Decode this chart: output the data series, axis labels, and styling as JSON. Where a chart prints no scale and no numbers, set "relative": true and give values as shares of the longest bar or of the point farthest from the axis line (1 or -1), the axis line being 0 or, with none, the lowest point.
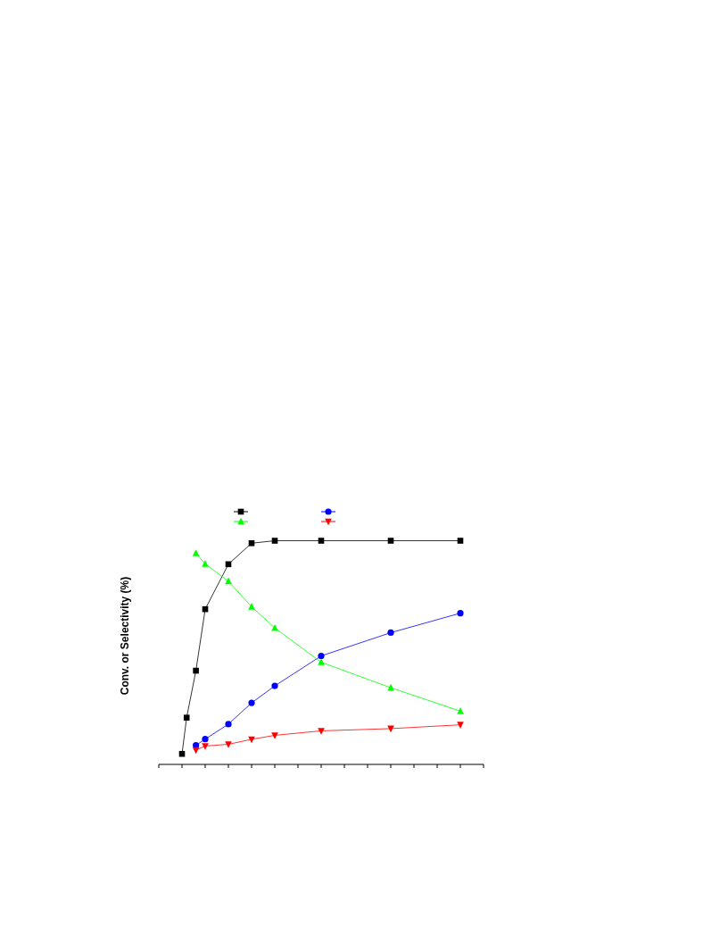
{
  "chart_data": {
    "type": "line",
    "ylabel": "Conv. or Selectivity (%)",
    "relative": true,
    "categories": [
      null,
      null,
      null,
      null,
      null,
      null,
      null,
      null,
      null,
      null,
      null,
      null,
      null,
      null,
      null,
      null,
      null,
      null,
      null,
      null,
      null,
      null,
      null,
      null,
      null,
      null,
      null,
      null,
      null,
      null,
      null,
      null,
      null,
      null,
      null,
      null,
      null,
      null,
      null,
      null,
      null,
      null,
      null,
      null,
      null,
      null,
      null,
      null,
      null,
      null,
      null,
      null,
      null,
      null,
      null,
      null,
      null,
      null,
      null,
      null,
      null,
      null,
      null,
      null,
      null,
      null,
      null,
      null,
      null,
      null,
      null
    ],
    "series": [
      {
        "color": "#000000",
        "marker": "square",
        "values": [
          null,
          null,
          null,
          null,
          null,
          0.047,
          0.209,
          null,
          0.419,
          null,
          0.694,
          null,
          null,
          null,
          null,
          0.895,
          null,
          null,
          null,
          null,
          0.989,
          null,
          null,
          null,
          null,
          1,
          null,
          null,
          null,
          null,
          null,
          null,
          null,
          null,
          null,
          1,
          null,
          null,
          null,
          null,
          null,
          null,
          null,
          null,
          null,
          null,
          null,
          null,
          null,
          null,
          1,
          null,
          null,
          null,
          null,
          null,
          null,
          null,
          null,
          null,
          null,
          null,
          null,
          null,
          null,
          1,
          null,
          null,
          null,
          null,
          null
        ]
      },
      {
        "color": "#0000ff",
        "marker": "circle",
        "values": [
          null,
          null,
          null,
          null,
          null,
          null,
          null,
          null,
          0.085,
          null,
          0.113,
          null,
          null,
          null,
          null,
          0.18,
          null,
          null,
          null,
          null,
          0.275,
          null,
          null,
          null,
          null,
          0.351,
          null,
          null,
          null,
          null,
          null,
          null,
          null,
          null,
          null,
          0.485,
          null,
          null,
          null,
          null,
          null,
          null,
          null,
          null,
          null,
          null,
          null,
          null,
          null,
          null,
          0.589,
          null,
          null,
          null,
          null,
          null,
          null,
          null,
          null,
          null,
          null,
          null,
          null,
          null,
          null,
          0.676,
          null,
          null,
          null,
          null,
          null
        ]
      },
      {
        "color": "#00ff00",
        "marker": "triangle",
        "values": [
          null,
          null,
          null,
          null,
          null,
          null,
          null,
          null,
          0.944,
          null,
          0.896,
          null,
          null,
          null,
          null,
          0.819,
          null,
          null,
          null,
          null,
          0.705,
          null,
          null,
          null,
          null,
          0.61,
          null,
          null,
          null,
          null,
          null,
          null,
          null,
          null,
          null,
          0.457,
          null,
          null,
          null,
          null,
          null,
          null,
          null,
          null,
          null,
          null,
          null,
          null,
          null,
          null,
          0.343,
          null,
          null,
          null,
          null,
          null,
          null,
          null,
          null,
          null,
          null,
          null,
          null,
          null,
          null,
          0.238,
          null,
          null,
          null,
          null,
          null
        ]
      },
      {
        "color": "#ff0000",
        "marker": "triangle-down",
        "values": [
          null,
          null,
          null,
          null,
          null,
          null,
          null,
          null,
          0.064,
          null,
          0.082,
          null,
          null,
          null,
          null,
          0.09,
          null,
          null,
          null,
          null,
          0.112,
          null,
          null,
          null,
          null,
          0.13,
          null,
          null,
          null,
          null,
          null,
          null,
          null,
          null,
          null,
          0.15,
          null,
          null,
          null,
          null,
          null,
          null,
          null,
          null,
          null,
          null,
          null,
          null,
          null,
          null,
          0.16,
          null,
          null,
          null,
          null,
          null,
          null,
          null,
          null,
          null,
          null,
          null,
          null,
          null,
          null,
          0.177,
          null,
          null,
          null,
          null,
          null
        ]
      }
    ]
  }
}
